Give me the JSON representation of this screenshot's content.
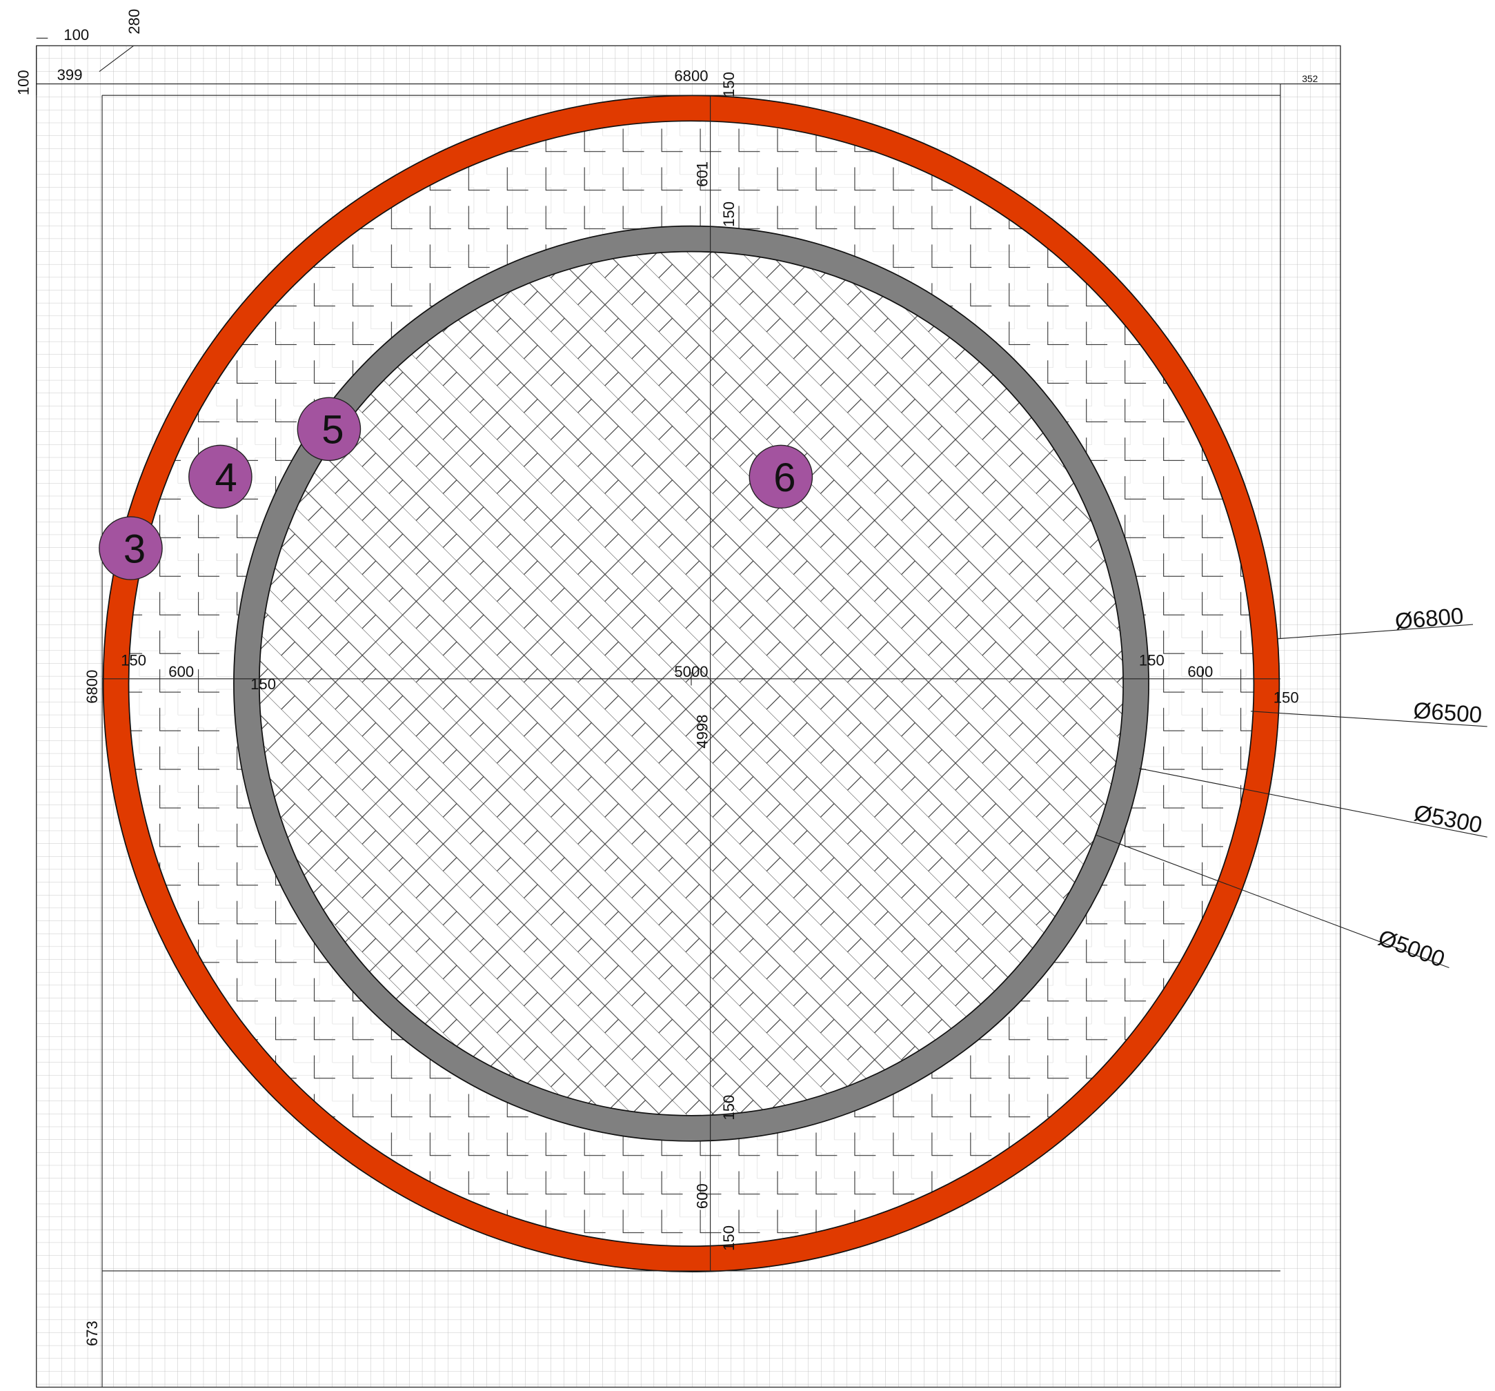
{
  "dimensions": {
    "top": [
      "100",
      "280",
      "100",
      "399",
      "6800",
      "150",
      "352"
    ],
    "vertical": [
      "601",
      "150",
      "4998",
      "150",
      "600",
      "150",
      "673",
      "6800"
    ],
    "horizontal": [
      "150",
      "600",
      "150",
      "5000",
      "150",
      "600",
      "150"
    ]
  },
  "diameters": [
    "Ø6800",
    "Ø6500",
    "Ø5300",
    "Ø5000"
  ],
  "markers": [
    "3",
    "4",
    "5",
    "6"
  ]
}
